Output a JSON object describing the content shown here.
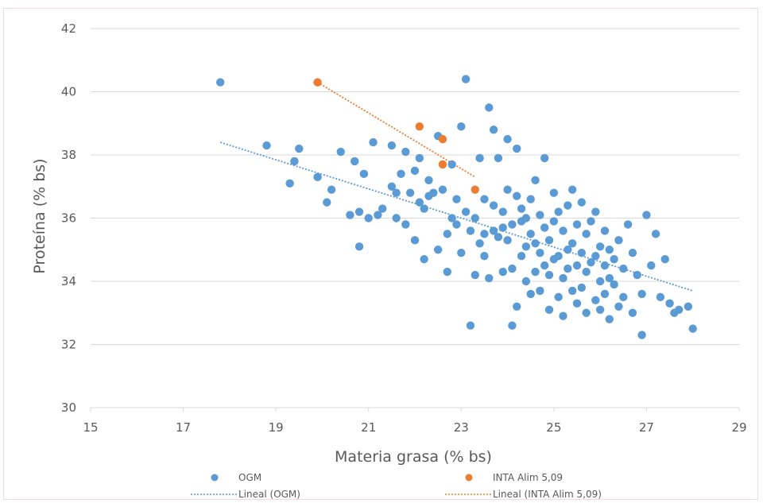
{
  "chart_data": {
    "type": "scatter",
    "title": "",
    "xlabel": "Materia grasa (% bs)",
    "ylabel": "Proteína (% bs)",
    "xlim": [
      15,
      29
    ],
    "ylim": [
      30,
      42
    ],
    "xticks": [
      15,
      17,
      19,
      21,
      23,
      25,
      27,
      29
    ],
    "yticks": [
      30,
      32,
      34,
      36,
      38,
      40,
      42
    ],
    "grid": true,
    "legend": "bottom",
    "colors": {
      "OGM": "#5b9bd5",
      "INTA": "#ed7d31",
      "grid": "#d9d9d9",
      "axis_text": "#595959"
    },
    "series": [
      {
        "name": "OGM",
        "kind": "points",
        "color": "#5b9bd5",
        "points": [
          [
            17.8,
            40.3
          ],
          [
            18.8,
            38.3
          ],
          [
            19.3,
            37.1
          ],
          [
            19.4,
            37.8
          ],
          [
            19.5,
            38.2
          ],
          [
            19.9,
            37.3
          ],
          [
            20.1,
            36.5
          ],
          [
            20.2,
            36.9
          ],
          [
            20.4,
            38.1
          ],
          [
            20.6,
            36.1
          ],
          [
            20.7,
            37.8
          ],
          [
            20.8,
            35.1
          ],
          [
            20.8,
            36.2
          ],
          [
            20.9,
            37.4
          ],
          [
            21.0,
            36.0
          ],
          [
            21.1,
            38.4
          ],
          [
            21.2,
            36.1
          ],
          [
            21.3,
            36.3
          ],
          [
            21.5,
            37.0
          ],
          [
            21.5,
            38.3
          ],
          [
            21.6,
            36.0
          ],
          [
            21.6,
            36.8
          ],
          [
            21.7,
            37.4
          ],
          [
            21.8,
            35.8
          ],
          [
            21.8,
            38.1
          ],
          [
            21.9,
            36.8
          ],
          [
            22.0,
            35.3
          ],
          [
            22.0,
            37.5
          ],
          [
            22.1,
            36.5
          ],
          [
            22.1,
            37.9
          ],
          [
            22.2,
            34.7
          ],
          [
            22.2,
            36.3
          ],
          [
            22.3,
            36.7
          ],
          [
            22.3,
            37.2
          ],
          [
            22.4,
            36.8
          ],
          [
            22.5,
            38.6
          ],
          [
            22.5,
            35.0
          ],
          [
            22.6,
            36.9
          ],
          [
            22.7,
            34.3
          ],
          [
            22.7,
            35.5
          ],
          [
            22.8,
            36.0
          ],
          [
            22.8,
            37.7
          ],
          [
            22.9,
            35.8
          ],
          [
            22.9,
            36.6
          ],
          [
            23.0,
            34.9
          ],
          [
            23.0,
            38.9
          ],
          [
            23.1,
            36.2
          ],
          [
            23.1,
            40.4
          ],
          [
            23.2,
            32.6
          ],
          [
            23.2,
            35.6
          ],
          [
            23.3,
            34.2
          ],
          [
            23.3,
            36.0
          ],
          [
            23.4,
            35.2
          ],
          [
            23.4,
            37.9
          ],
          [
            23.5,
            34.8
          ],
          [
            23.5,
            35.5
          ],
          [
            23.5,
            36.6
          ],
          [
            23.6,
            39.5
          ],
          [
            23.6,
            34.1
          ],
          [
            23.7,
            35.6
          ],
          [
            23.7,
            36.4
          ],
          [
            23.7,
            38.8
          ],
          [
            23.8,
            35.4
          ],
          [
            23.8,
            37.9
          ],
          [
            23.9,
            34.3
          ],
          [
            23.9,
            35.7
          ],
          [
            23.9,
            36.2
          ],
          [
            24.0,
            35.3
          ],
          [
            24.0,
            36.9
          ],
          [
            24.0,
            38.5
          ],
          [
            24.1,
            32.6
          ],
          [
            24.1,
            34.4
          ],
          [
            24.1,
            35.8
          ],
          [
            24.2,
            33.2
          ],
          [
            24.2,
            36.7
          ],
          [
            24.2,
            38.2
          ],
          [
            24.3,
            34.8
          ],
          [
            24.3,
            35.9
          ],
          [
            24.3,
            36.3
          ],
          [
            24.4,
            34.0
          ],
          [
            24.4,
            35.1
          ],
          [
            24.4,
            36.0
          ],
          [
            24.5,
            33.6
          ],
          [
            24.5,
            35.5
          ],
          [
            24.5,
            36.6
          ],
          [
            24.6,
            34.3
          ],
          [
            24.6,
            35.2
          ],
          [
            24.6,
            37.2
          ],
          [
            24.7,
            33.7
          ],
          [
            24.7,
            34.9
          ],
          [
            24.7,
            36.1
          ],
          [
            24.8,
            34.5
          ],
          [
            24.8,
            35.7
          ],
          [
            24.8,
            37.9
          ],
          [
            24.9,
            33.1
          ],
          [
            24.9,
            34.2
          ],
          [
            24.9,
            35.3
          ],
          [
            25.0,
            34.7
          ],
          [
            25.0,
            35.9
          ],
          [
            25.0,
            36.8
          ],
          [
            25.1,
            33.5
          ],
          [
            25.1,
            34.8
          ],
          [
            25.1,
            36.2
          ],
          [
            25.2,
            32.9
          ],
          [
            25.2,
            34.1
          ],
          [
            25.2,
            35.6
          ],
          [
            25.3,
            34.4
          ],
          [
            25.3,
            35.0
          ],
          [
            25.3,
            36.4
          ],
          [
            25.4,
            33.7
          ],
          [
            25.4,
            35.2
          ],
          [
            25.4,
            36.9
          ],
          [
            25.5,
            33.3
          ],
          [
            25.5,
            34.5
          ],
          [
            25.5,
            35.8
          ],
          [
            25.6,
            33.8
          ],
          [
            25.6,
            34.9
          ],
          [
            25.6,
            36.5
          ],
          [
            25.7,
            33.0
          ],
          [
            25.7,
            34.3
          ],
          [
            25.7,
            35.5
          ],
          [
            25.8,
            34.6
          ],
          [
            25.8,
            35.9
          ],
          [
            25.9,
            33.4
          ],
          [
            25.9,
            34.8
          ],
          [
            25.9,
            36.2
          ],
          [
            26.0,
            33.1
          ],
          [
            26.0,
            34.0
          ],
          [
            26.0,
            35.1
          ],
          [
            26.1,
            33.6
          ],
          [
            26.1,
            34.5
          ],
          [
            26.1,
            35.6
          ],
          [
            26.2,
            32.8
          ],
          [
            26.2,
            34.1
          ],
          [
            26.2,
            35.0
          ],
          [
            26.3,
            33.9
          ],
          [
            26.3,
            34.7
          ],
          [
            26.4,
            33.2
          ],
          [
            26.4,
            35.3
          ],
          [
            26.5,
            33.5
          ],
          [
            26.5,
            34.4
          ],
          [
            26.6,
            35.8
          ],
          [
            26.7,
            33.0
          ],
          [
            26.7,
            34.9
          ],
          [
            26.8,
            34.2
          ],
          [
            26.9,
            32.3
          ],
          [
            26.9,
            33.6
          ],
          [
            27.0,
            36.1
          ],
          [
            27.1,
            34.5
          ],
          [
            27.2,
            35.5
          ],
          [
            27.3,
            33.5
          ],
          [
            27.4,
            34.7
          ],
          [
            27.5,
            33.3
          ],
          [
            27.6,
            33.0
          ],
          [
            27.7,
            33.1
          ],
          [
            27.9,
            33.2
          ],
          [
            28.0,
            32.5
          ]
        ]
      },
      {
        "name": "INTA Alim 5,09",
        "kind": "points",
        "color": "#ed7d31",
        "points": [
          [
            19.9,
            40.3
          ],
          [
            22.1,
            38.9
          ],
          [
            22.6,
            38.5
          ],
          [
            22.6,
            37.7
          ],
          [
            23.3,
            36.9
          ]
        ]
      },
      {
        "name": "Lineal (OGM)",
        "kind": "trendline",
        "color": "#5b9bd5",
        "points": [
          [
            17.8,
            38.4
          ],
          [
            28.0,
            33.7
          ]
        ]
      },
      {
        "name": "Lineal (INTA Alim 5,09)",
        "kind": "trendline",
        "color": "#ed7d31",
        "points": [
          [
            19.9,
            40.3
          ],
          [
            23.3,
            37.3
          ]
        ]
      }
    ]
  }
}
